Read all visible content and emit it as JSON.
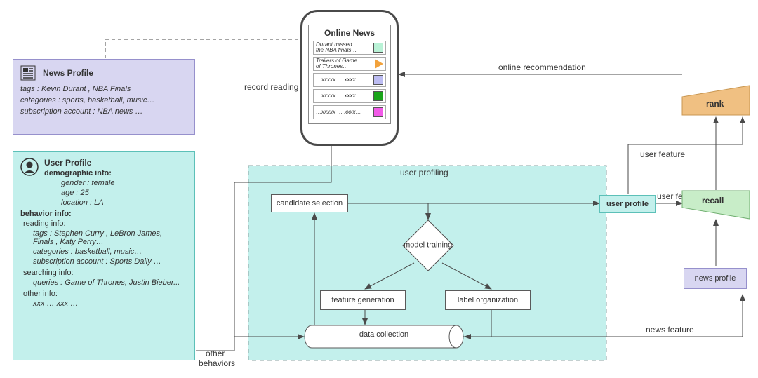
{
  "colors": {
    "news_card_bg": "#d8d6f1",
    "news_card_border": "#9690cc",
    "user_card_bg": "#c3f0ec",
    "user_card_border": "#5cc0b8",
    "phone_border": "#4a4a4a",
    "profiling_bg": "#c3f0ec",
    "profiling_border": "#8aa0a0",
    "box_border": "#5a5a5a",
    "user_profile_bg": "#c3f0ec",
    "user_profile_border": "#5cc0b8",
    "news_profile_bg": "#d8d6f1",
    "news_profile_border": "#9690cc",
    "rank_fill": "#f0c082",
    "rank_border": "#c89650",
    "recall_fill": "#c8edc8",
    "recall_border": "#6fae6f",
    "arrow": "#4a4a4a",
    "text": "#333333"
  },
  "news_card": {
    "title": "News Profile",
    "lines": [
      "tags : Kevin Durant , NBA Finals",
      "categories :  sports, basketball, music…",
      "subscription account  :   NBA news …"
    ]
  },
  "user_card": {
    "title": "User Profile",
    "demo_label": "demographic info:",
    "demo_lines": [
      "gender : female",
      "age : 25",
      "location : LA"
    ],
    "behavior_label": "behavior info:",
    "reading_label": "reading info:",
    "reading_lines": [
      "tags : Stephen Curry , LeBron James,\n         Finals , Katy Perry…",
      "categories :  basketball, music…",
      "subscription account  :   Sports Daily …"
    ],
    "searching_label": "searching info:",
    "searching_lines": [
      "queries :  Game of Thrones, Justin Bieber..."
    ],
    "other_label": "other info:",
    "other_lines": [
      "xxx … xxx …"
    ]
  },
  "phone": {
    "title": "Online News",
    "rows": [
      {
        "text": "Durant missed\nthe NBA finals…",
        "swatch": "#b9f2d6",
        "shape": "square"
      },
      {
        "text": "Trailers of  Game\nof Thrones…",
        "swatch": "#f2a23c",
        "shape": "triangle"
      },
      {
        "text": "…xxxxx … xxxx…",
        "swatch": "#bcbcf2",
        "shape": "square"
      },
      {
        "text": "…xxxxx … xxxx…",
        "swatch": "#1aa51a",
        "shape": "square"
      },
      {
        "text": "…xxxxx … xxxx…",
        "swatch": "#f25ae8",
        "shape": "square"
      }
    ]
  },
  "profiling": {
    "label": "user profiling",
    "candidate_selection": "candidate selection",
    "model_training": "model training",
    "feature_generation": "feature generation",
    "label_organization": "label organization",
    "data_collection": "data collection"
  },
  "right": {
    "user_profile": "user profile",
    "news_profile": "news profile",
    "rank": "rank",
    "recall": "recall"
  },
  "edge_labels": {
    "record": "record reading behaviors",
    "online_rec": "online recommendation",
    "user_feature_top": "user feature",
    "user_feature_mid": "user feature",
    "news_feature": "news feature",
    "other_behaviors": "other\nbehaviors"
  },
  "layout": {
    "stage_w": 1080,
    "stage_h": 539
  }
}
